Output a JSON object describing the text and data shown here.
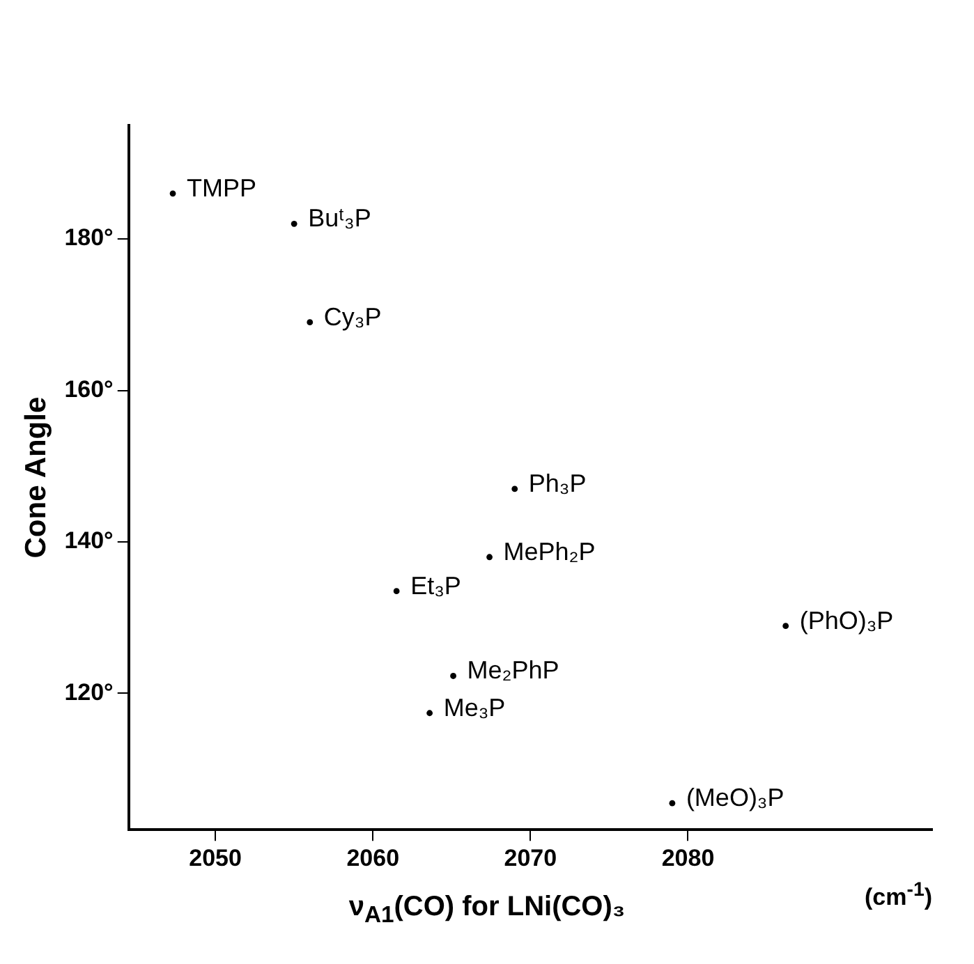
{
  "chart_data": {
    "type": "scatter",
    "xlabel": "ν$_{A1}$(CO) for LNi(CO)₃",
    "ylabel": "Cone Angle",
    "x": [
      2047.3,
      2055.0,
      2056.0,
      2069.0,
      2067.4,
      2061.5,
      2065.1,
      2063.6,
      2086.2,
      2079.0
    ],
    "series": [
      {
        "color": "#000000",
        "values": [
          186,
          182,
          169,
          147,
          138,
          133.5,
          122.3,
          117.4,
          128.9,
          105.5
        ]
      }
    ],
    "xlim": [
      2044.5,
      2095.5
    ],
    "xticks": [
      2050,
      2060,
      2070,
      2080
    ],
    "ylim": [
      102,
      195
    ],
    "yticks": [
      {
        "value": 120,
        "label": "120°"
      },
      {
        "value": 140,
        "label": "140°"
      },
      {
        "value": 160,
        "label": "160°"
      },
      {
        "value": 180,
        "label": "180°"
      }
    ],
    "grid": false,
    "legend": false,
    "marker": "circle",
    "annotations": [
      {
        "text": "TMPP",
        "x": 2047.3,
        "y": 186
      },
      {
        "text": "Buᵗ₃P",
        "x": 2055.0,
        "y": 182
      },
      {
        "text": "Cy₃P",
        "x": 2056.0,
        "y": 169
      },
      {
        "text": "Ph₃P",
        "x": 2069.0,
        "y": 147
      },
      {
        "text": "MePh₂P",
        "x": 2067.4,
        "y": 138
      },
      {
        "text": "Et₃P",
        "x": 2061.5,
        "y": 133.5
      },
      {
        "text": "Me₂PhP",
        "x": 2065.1,
        "y": 122.3
      },
      {
        "text": "Me₃P",
        "x": 2063.6,
        "y": 117.4
      },
      {
        "text": "(PhO)₃P",
        "x": 2086.2,
        "y": 128.9
      },
      {
        "text": "(MeO)₃P",
        "x": 2079.0,
        "y": 105.5
      },
      "(cm$^{-1}$)"
    ]
  }
}
